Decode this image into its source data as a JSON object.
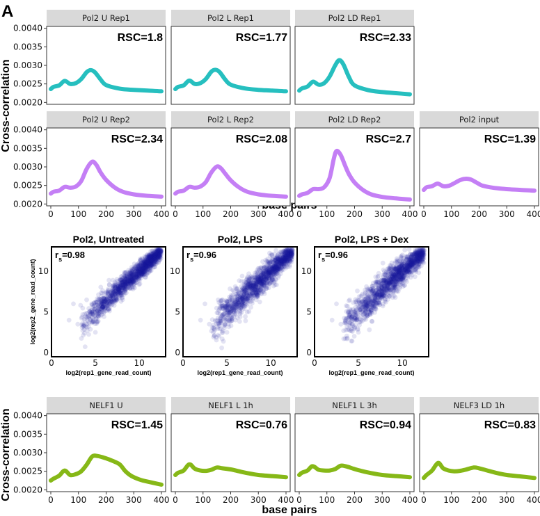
{
  "panel_letter": "A",
  "chart_data": [
    {
      "type": "line",
      "group": "pol2_cross_correlation",
      "ylabel": "Cross-correlation",
      "xlabel": "base pairs",
      "xlim": [
        0,
        400
      ],
      "ylim": [
        0.00195,
        0.00405
      ],
      "x_ticks": [
        0,
        100,
        200,
        300,
        400
      ],
      "y_ticks": [
        "0.0020",
        "0.0025",
        "0.0030",
        "0.0035",
        "0.0040"
      ],
      "y_tick_values": [
        0.002,
        0.0025,
        0.003,
        0.0035,
        0.004
      ],
      "panels": [
        {
          "title": "Pol2 U Rep1",
          "rsc": "RSC=1.8",
          "color": "#26bfbf",
          "row": 0,
          "col": 0,
          "show_x_ticks": false,
          "x": [
            0,
            10,
            30,
            50,
            70,
            90,
            110,
            130,
            145,
            160,
            180,
            200,
            250,
            300,
            350,
            400
          ],
          "y": [
            0.00236,
            0.00242,
            0.00246,
            0.00258,
            0.0025,
            0.00252,
            0.00263,
            0.00282,
            0.00287,
            0.00281,
            0.00262,
            0.00247,
            0.00237,
            0.00234,
            0.00232,
            0.0023
          ]
        },
        {
          "title": "Pol2 L Rep1",
          "rsc": "RSC=1.77",
          "color": "#26bfbf",
          "row": 0,
          "col": 1,
          "show_x_ticks": false,
          "x": [
            0,
            10,
            30,
            50,
            70,
            90,
            110,
            130,
            145,
            160,
            180,
            200,
            250,
            300,
            350,
            400
          ],
          "y": [
            0.00236,
            0.00242,
            0.00246,
            0.00259,
            0.0025,
            0.00252,
            0.00263,
            0.00283,
            0.00288,
            0.00282,
            0.00262,
            0.00248,
            0.00238,
            0.00234,
            0.00232,
            0.0023
          ]
        },
        {
          "title": "Pol2 LD Rep1",
          "rsc": "RSC=2.33",
          "color": "#26bfbf",
          "row": 0,
          "col": 2,
          "show_x_ticks": false,
          "x": [
            0,
            10,
            30,
            50,
            70,
            90,
            110,
            130,
            145,
            160,
            180,
            200,
            250,
            300,
            350,
            400
          ],
          "y": [
            0.00232,
            0.00238,
            0.00243,
            0.00256,
            0.00248,
            0.00252,
            0.0027,
            0.003,
            0.00314,
            0.00302,
            0.00268,
            0.00246,
            0.00233,
            0.00228,
            0.00225,
            0.00222
          ]
        },
        {
          "title": "Pol2 U Rep2",
          "rsc": "RSC=2.34",
          "color": "#c47ff5",
          "row": 1,
          "col": 0,
          "show_x_ticks": true,
          "x": [
            0,
            10,
            30,
            50,
            70,
            90,
            110,
            130,
            150,
            165,
            180,
            200,
            230,
            260,
            300,
            350,
            400
          ],
          "y": [
            0.00228,
            0.00233,
            0.00236,
            0.00246,
            0.00244,
            0.00247,
            0.00262,
            0.00295,
            0.00314,
            0.00305,
            0.00285,
            0.00265,
            0.00245,
            0.00233,
            0.00226,
            0.00222,
            0.0022
          ]
        },
        {
          "title": "Pol2 L Rep2",
          "rsc": "RSC=2.08",
          "color": "#c47ff5",
          "row": 1,
          "col": 1,
          "show_x_ticks": true,
          "x": [
            0,
            10,
            30,
            50,
            70,
            90,
            110,
            130,
            150,
            165,
            180,
            200,
            230,
            260,
            300,
            350,
            400
          ],
          "y": [
            0.00228,
            0.00233,
            0.00236,
            0.00246,
            0.00244,
            0.00247,
            0.00259,
            0.00285,
            0.00301,
            0.00296,
            0.00282,
            0.00264,
            0.00245,
            0.00233,
            0.00226,
            0.00222,
            0.0022
          ]
        },
        {
          "title": "Pol2 LD Rep2",
          "rsc": "RSC=2.7",
          "color": "#c47ff5",
          "row": 1,
          "col": 2,
          "show_x_ticks": true,
          "x": [
            0,
            10,
            30,
            50,
            70,
            90,
            110,
            125,
            135,
            150,
            165,
            180,
            200,
            230,
            260,
            300,
            350,
            400
          ],
          "y": [
            0.00222,
            0.00226,
            0.0023,
            0.0024,
            0.0024,
            0.00245,
            0.0027,
            0.00322,
            0.00343,
            0.00332,
            0.00305,
            0.0028,
            0.00258,
            0.00238,
            0.00226,
            0.00219,
            0.00215,
            0.00212
          ]
        },
        {
          "title": "Pol2 input",
          "rsc": "RSC=1.39",
          "color": "#c47ff5",
          "row": 1,
          "col": 3,
          "show_x_ticks": true,
          "x": [
            0,
            10,
            30,
            50,
            70,
            90,
            110,
            130,
            150,
            170,
            190,
            210,
            240,
            270,
            300,
            350,
            400
          ],
          "y": [
            0.00238,
            0.00245,
            0.00248,
            0.00255,
            0.00248,
            0.00249,
            0.00256,
            0.00264,
            0.00268,
            0.00266,
            0.00258,
            0.0025,
            0.00245,
            0.00242,
            0.0024,
            0.00238,
            0.00236
          ]
        },
        {
          "title": "NELF1 U",
          "rsc": "RSC=1.45",
          "color": "#86b817",
          "row": 2,
          "col": 0,
          "show_x_ticks": true,
          "x": [
            0,
            10,
            30,
            50,
            70,
            90,
            110,
            130,
            150,
            170,
            190,
            210,
            230,
            250,
            270,
            290,
            320,
            350,
            400
          ],
          "y": [
            0.00225,
            0.0023,
            0.00238,
            0.00252,
            0.0024,
            0.00242,
            0.0025,
            0.00268,
            0.0029,
            0.00291,
            0.00287,
            0.00282,
            0.00276,
            0.00268,
            0.0025,
            0.00238,
            0.00228,
            0.00222,
            0.00214
          ]
        },
        {
          "title": "NELF1 L 1h",
          "rsc": "RSC=0.76",
          "color": "#86b817",
          "row": 2,
          "col": 1,
          "show_x_ticks": true,
          "x": [
            0,
            10,
            30,
            45,
            55,
            70,
            90,
            110,
            130,
            150,
            170,
            200,
            230,
            260,
            300,
            350,
            400
          ],
          "y": [
            0.0024,
            0.00246,
            0.00252,
            0.00266,
            0.00268,
            0.00257,
            0.00252,
            0.00251,
            0.00254,
            0.0026,
            0.00258,
            0.00255,
            0.0025,
            0.00245,
            0.0024,
            0.00237,
            0.00234
          ]
        },
        {
          "title": "NELF1 L 3h",
          "rsc": "RSC=0.94",
          "color": "#86b817",
          "row": 2,
          "col": 2,
          "show_x_ticks": true,
          "x": [
            0,
            10,
            30,
            45,
            55,
            70,
            90,
            110,
            130,
            150,
            170,
            200,
            230,
            260,
            300,
            350,
            400
          ],
          "y": [
            0.0024,
            0.00246,
            0.00252,
            0.00263,
            0.00262,
            0.00254,
            0.00252,
            0.00252,
            0.00256,
            0.00265,
            0.00263,
            0.00256,
            0.0025,
            0.00245,
            0.0024,
            0.00237,
            0.00234
          ]
        },
        {
          "title": "NELF3 LD 1h",
          "rsc": "RSC=0.83",
          "color": "#86b817",
          "row": 2,
          "col": 3,
          "show_x_ticks": true,
          "x": [
            0,
            10,
            30,
            45,
            55,
            70,
            90,
            110,
            130,
            150,
            180,
            200,
            230,
            260,
            300,
            350,
            400
          ],
          "y": [
            0.00232,
            0.0024,
            0.00252,
            0.00268,
            0.00272,
            0.00258,
            0.00252,
            0.0025,
            0.00251,
            0.00254,
            0.0026,
            0.00258,
            0.00252,
            0.00246,
            0.0024,
            0.00236,
            0.00232
          ]
        }
      ]
    },
    {
      "type": "scatter",
      "group": "pol2_replicate_concordance",
      "xlabel": "log2(rep1_gene_read_count)",
      "ylabel": "log2(rep2_gene_read_count)",
      "xlim": [
        0,
        13
      ],
      "ylim": [
        -0.5,
        13
      ],
      "x_ticks": [
        0,
        5,
        10
      ],
      "y_ticks": [
        0,
        5,
        10
      ],
      "point_color": "#1a1aa0",
      "panels": [
        {
          "title": "Pol2, Untreated",
          "r_label": "r",
          "r_sub": "s",
          "r_value": "=0.98",
          "spread": 0.45
        },
        {
          "title": "Pol2, LPS",
          "r_label": "r",
          "r_sub": "s",
          "r_value": "=0.96",
          "spread": 0.6
        },
        {
          "title": "Pol2, LPS + Dex",
          "r_label": "r",
          "r_sub": "s",
          "r_value": "=0.96",
          "spread": 0.65
        }
      ]
    }
  ]
}
